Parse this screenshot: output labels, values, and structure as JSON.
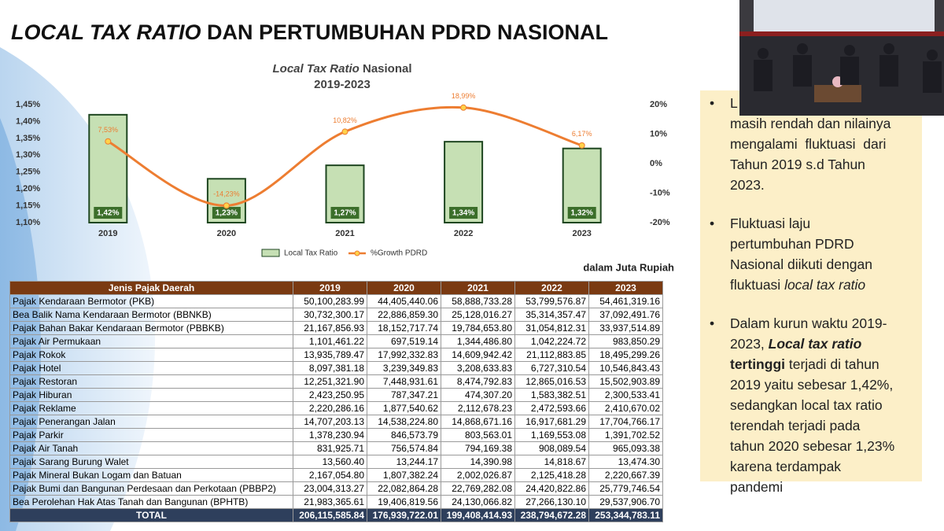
{
  "title": {
    "italic": "LOCAL TAX RATIO",
    "rest": " DAN PERTUMBUHAN PDRD NASIONAL"
  },
  "chart_data": {
    "type": "bar-line",
    "title": {
      "italic": "Local Tax Ratio",
      "rest": " Nasional"
    },
    "subtitle": "2019-2023",
    "categories": [
      "2019",
      "2020",
      "2021",
      "2022",
      "2023"
    ],
    "series": [
      {
        "name": "Local Tax Ratio",
        "type": "bar",
        "color": "#c6e0b4",
        "values": [
          1.42,
          1.23,
          1.27,
          1.34,
          1.32
        ],
        "value_labels": [
          "1,42%",
          "1,23%",
          "1,27%",
          "1,34%",
          "1,32%"
        ]
      },
      {
        "name": "%Growth PDRD",
        "type": "line",
        "axis": "y2",
        "color": "#ed7d31",
        "values": [
          7.53,
          -14.23,
          10.82,
          18.99,
          6.17
        ],
        "value_labels": [
          "7,53%",
          "-14,23%",
          "10,82%",
          "18,99%",
          "6,17%"
        ]
      }
    ],
    "ylim": [
      1.1,
      1.45
    ],
    "yticks": [
      {
        "value": 1.1,
        "label": "1,10%"
      },
      {
        "value": 1.15,
        "label": "1,15%"
      },
      {
        "value": 1.2,
        "label": "1,20%"
      },
      {
        "value": 1.25,
        "label": "1,25%"
      },
      {
        "value": 1.3,
        "label": "1,30%"
      },
      {
        "value": 1.35,
        "label": "1,35%"
      },
      {
        "value": 1.4,
        "label": "1,40%"
      },
      {
        "value": 1.45,
        "label": "1,45%"
      }
    ],
    "y2lim": [
      -20,
      20
    ],
    "y2ticks": [
      {
        "value": -20,
        "label": "-20%"
      },
      {
        "value": -10,
        "label": "-10%"
      },
      {
        "value": 0,
        "label": "0%"
      },
      {
        "value": 10,
        "label": "10%"
      },
      {
        "value": 20,
        "label": "20%"
      }
    ],
    "legend": "bottom"
  },
  "unit_note": "dalam Juta Rupiah",
  "table": {
    "header": [
      "Jenis Pajak Daerah",
      "2019",
      "2020",
      "2021",
      "2022",
      "2023"
    ],
    "rows": [
      [
        "Pajak Kendaraan Bermotor (PKB)",
        "50,100,283.99",
        "44,405,440.06",
        "58,888,733.28",
        "53,799,576.87",
        "54,461,319.16"
      ],
      [
        "Bea Balik Nama Kendaraan Bermotor (BBNKB)",
        "30,732,300.17",
        "22,886,859.30",
        "25,128,016.27",
        "35,314,357.47",
        "37,092,491.76"
      ],
      [
        "Pajak Bahan Bakar Kendaraan Bermotor (PBBKB)",
        "21,167,856.93",
        "18,152,717.74",
        "19,784,653.80",
        "31,054,812.31",
        "33,937,514.89"
      ],
      [
        "Pajak Air Permukaan",
        "1,101,461.22",
        "697,519.14",
        "1,344,486.80",
        "1,042,224.72",
        "983,850.29"
      ],
      [
        "Pajak Rokok",
        "13,935,789.47",
        "17,992,332.83",
        "14,609,942.42",
        "21,112,883.85",
        "18,495,299.26"
      ],
      [
        "Pajak Hotel",
        "8,097,381.18",
        "3,239,349.83",
        "3,208,633.83",
        "6,727,310.54",
        "10,546,843.43"
      ],
      [
        "Pajak Restoran",
        "12,251,321.90",
        "7,448,931.61",
        "8,474,792.83",
        "12,865,016.53",
        "15,502,903.89"
      ],
      [
        "Pajak Hiburan",
        "2,423,250.95",
        "787,347.21",
        "474,307.20",
        "1,583,382.51",
        "2,300,533.41"
      ],
      [
        "Pajak Reklame",
        "2,220,286.16",
        "1,877,540.62",
        "2,112,678.23",
        "2,472,593.66",
        "2,410,670.02"
      ],
      [
        "Pajak Penerangan Jalan",
        "14,707,203.13",
        "14,538,224.80",
        "14,868,671.16",
        "16,917,681.29",
        "17,704,766.17"
      ],
      [
        "Pajak Parkir",
        "1,378,230.94",
        "846,573.79",
        "803,563.01",
        "1,169,553.08",
        "1,391,702.52"
      ],
      [
        "Pajak Air Tanah",
        "831,925.71",
        "756,574.84",
        "794,169.38",
        "908,089.54",
        "965,093.38"
      ],
      [
        "Pajak Sarang Burung Walet",
        "13,560.40",
        "13,244.17",
        "14,390.98",
        "14,818.67",
        "13,474.30"
      ],
      [
        "Pajak Mineral Bukan Logam dan Batuan",
        "2,167,054.80",
        "1,807,382.24",
        "2,002,026.87",
        "2,125,418.28",
        "2,220,667.39"
      ],
      [
        "Pajak Bumi dan Bangunan Perdesaan dan Perkotaan (PBBP2)",
        "23,004,313.27",
        "22,082,864.28",
        "22,769,282.08",
        "24,420,822.86",
        "25,779,746.54"
      ],
      [
        "Bea Perolehan Hak Atas Tanah dan Bangunan (BPHTB)",
        "21,983,365.61",
        "19,406,819.56",
        "24,130,066.82",
        "27,266,130.10",
        "29,537,906.70"
      ]
    ],
    "total": [
      "TOTAL",
      "206,115,585.84",
      "176,939,722.01",
      "199,408,414.93",
      "238,794,672.28",
      "253,344,783.11"
    ]
  },
  "bullets": [
    [
      "L",
      "masih rendah dan nilainya",
      "mengalami  fluktuasi  dari",
      "Tahun 2019 s.d Tahun",
      "2023."
    ],
    [
      "Fluktuasi laju",
      "pertumbuhan PDRD",
      "Nasional diikuti dengan",
      "fluktuasi ",
      "local tax ratio"
    ],
    [
      "Dalam kurun waktu 2019-",
      "2023, ",
      "Local tax ratio",
      "tertinggi",
      " terjadi di tahun",
      "2019 yaitu sebesar 1,42%,",
      "sedangkan local tax ratio",
      "terendah terjadi pada",
      "tahun 2020 sebesar 1,23%",
      "karena terdampak",
      "pandemi"
    ]
  ]
}
